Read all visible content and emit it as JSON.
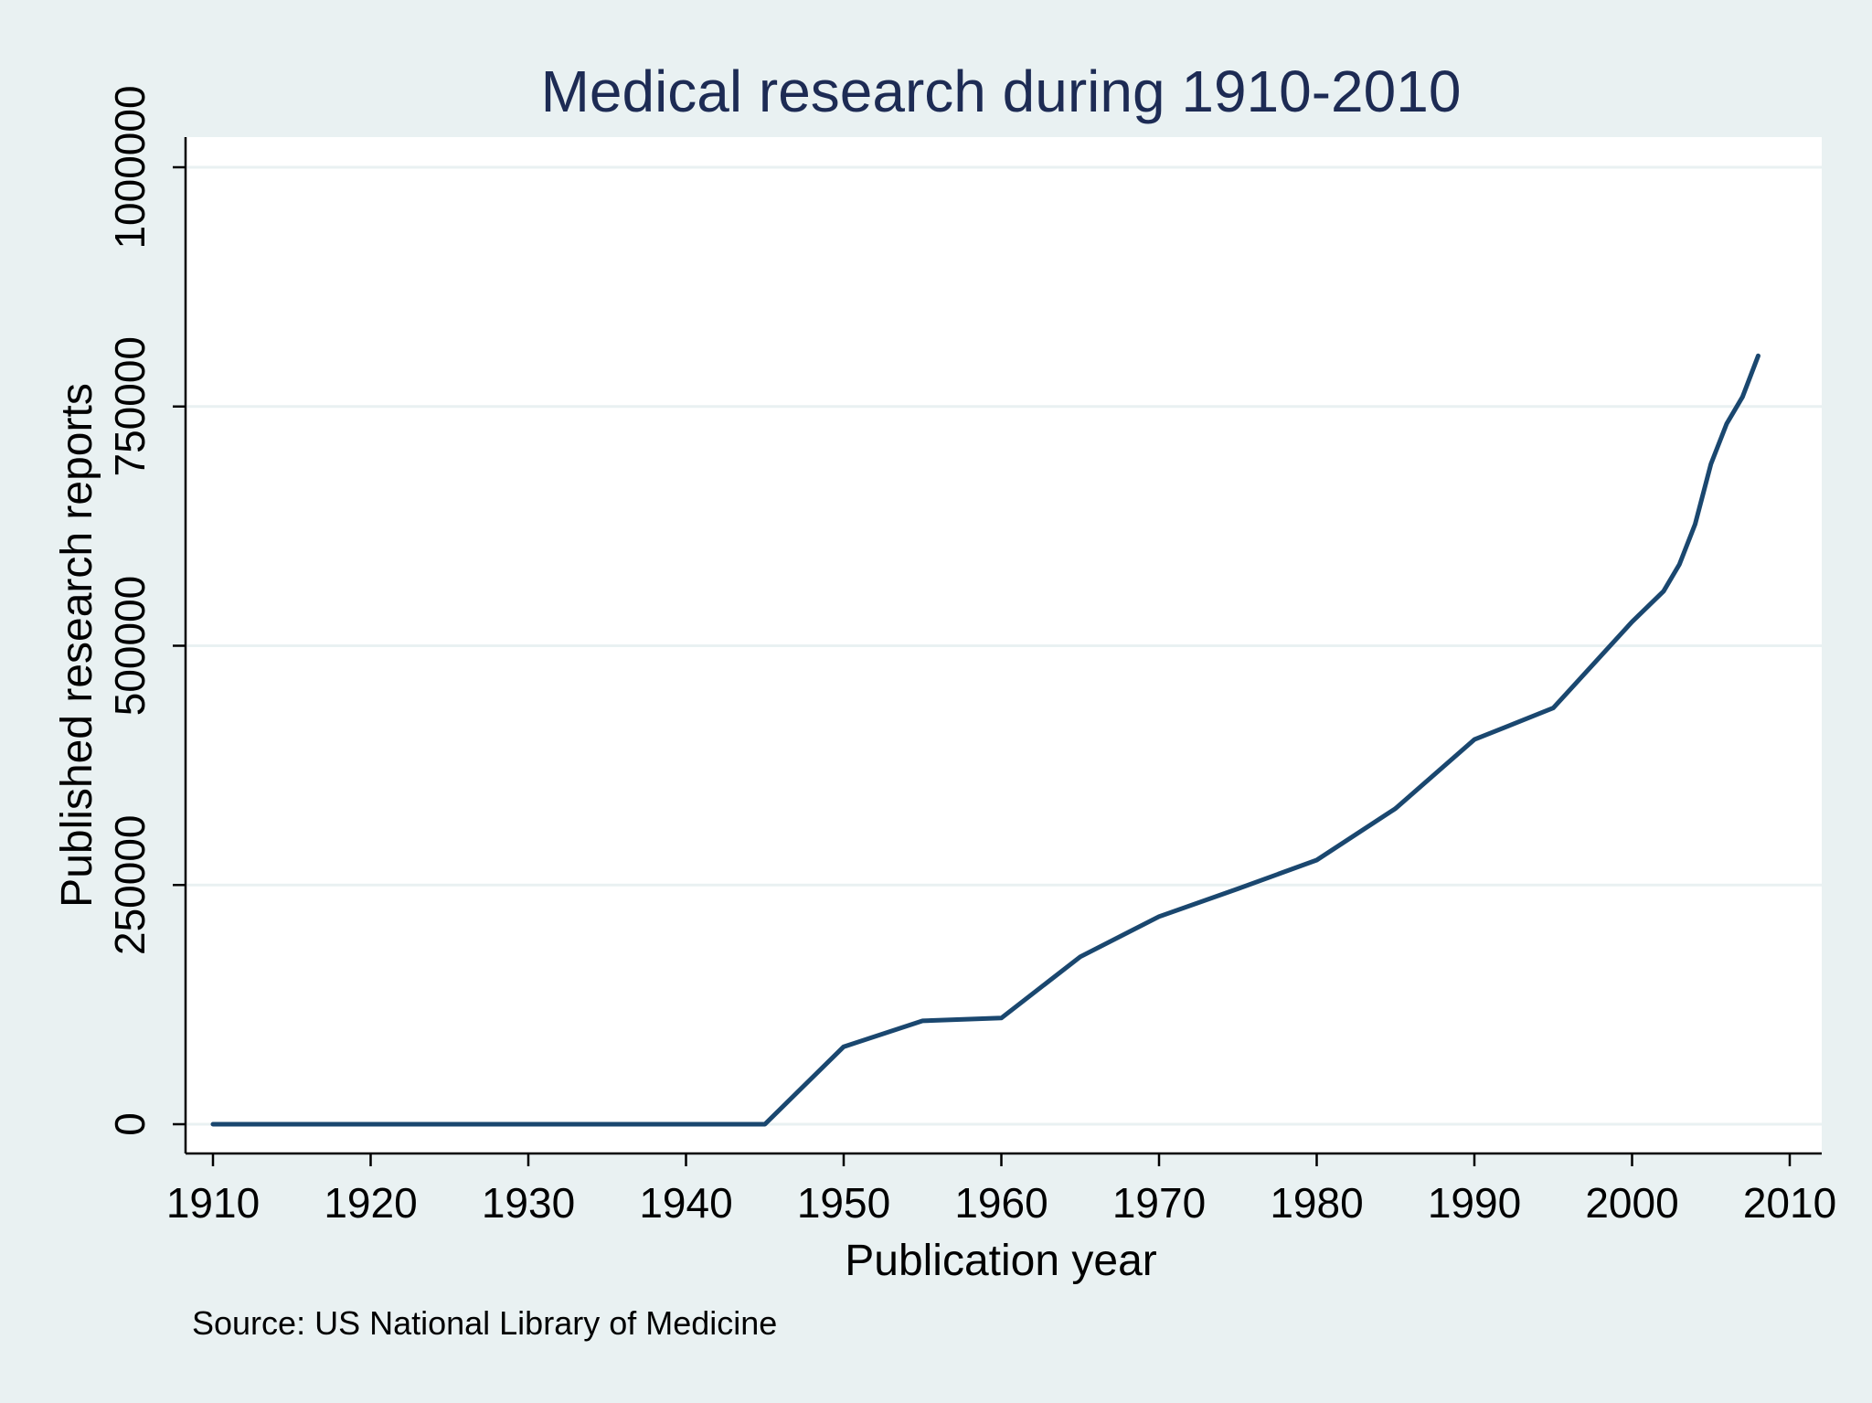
{
  "chart_data": {
    "type": "line",
    "title": "Medical research during 1910-2010",
    "xlabel": "Publication year",
    "ylabel": "Published research reports",
    "note": "Source: US National Library of Medicine",
    "xlim": [
      1908,
      2010
    ],
    "ylim": [
      0,
      1000000
    ],
    "x_ticks": [
      1910,
      1920,
      1930,
      1940,
      1950,
      1960,
      1970,
      1980,
      1990,
      2000,
      2010
    ],
    "y_ticks": [
      0,
      250000,
      500000,
      750000,
      1000000
    ],
    "x_tick_labels": [
      "1910",
      "1920",
      "1930",
      "1940",
      "1950",
      "1960",
      "1970",
      "1980",
      "1990",
      "2000",
      "2010"
    ],
    "y_tick_labels": [
      "0",
      "250000",
      "500000",
      "750000",
      "1000000"
    ],
    "grid": true,
    "series": [
      {
        "name": "Published research reports",
        "color": "#1a476f",
        "x": [
          1910,
          1915,
          1920,
          1925,
          1930,
          1935,
          1940,
          1945,
          1950,
          1955,
          1960,
          1965,
          1970,
          1975,
          1980,
          1985,
          1990,
          1995,
          2000,
          2002,
          2003,
          2004,
          2005,
          2006,
          2007,
          2008
        ],
        "y": [
          0,
          0,
          0,
          0,
          0,
          0,
          0,
          0,
          81000,
          108000,
          111000,
          175000,
          217000,
          246000,
          276000,
          330000,
          402000,
          435000,
          525000,
          557000,
          585000,
          627000,
          690000,
          732000,
          760000,
          803000
        ]
      }
    ]
  }
}
